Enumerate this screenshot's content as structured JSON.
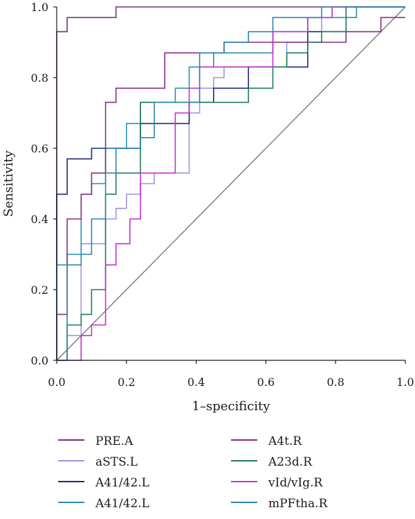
{
  "chart_data": {
    "type": "line",
    "title": "",
    "xlabel": "1–specificity",
    "ylabel": "Sensitivity",
    "xlim": [
      0,
      1
    ],
    "ylim": [
      0,
      1
    ],
    "xticks": [
      "0.0",
      "0.2",
      "0.4",
      "0.6",
      "0.8",
      "1.0"
    ],
    "yticks": [
      "0.0",
      "0.2",
      "0.4",
      "0.6",
      "0.8",
      "1.0"
    ],
    "grid": false,
    "legend_position": "bottom",
    "reference_line": {
      "x": [
        0,
        1
      ],
      "y": [
        0,
        1
      ],
      "color": "#777777"
    },
    "series": [
      {
        "name": "PRE.A",
        "color": "#7b2a86",
        "x": [
          0.0,
          0.0,
          0.03,
          0.03,
          0.1,
          0.1,
          0.17,
          0.17,
          1.0
        ],
        "y": [
          0.0,
          0.93,
          0.93,
          0.97,
          0.97,
          0.97,
          0.97,
          1.0,
          1.0
        ]
      },
      {
        "name": "aSTS.L",
        "color": "#9b96e0",
        "x": [
          0.0,
          0.03,
          0.03,
          0.07,
          0.07,
          0.14,
          0.14,
          0.17,
          0.17,
          0.2,
          0.2,
          0.24,
          0.24,
          0.28,
          0.28,
          0.38,
          0.38,
          0.41,
          0.41,
          0.45,
          0.45,
          0.48,
          0.48,
          0.52,
          0.52,
          0.55,
          0.55,
          0.66,
          0.66,
          0.72,
          0.72,
          0.76,
          0.76,
          0.79,
          0.79,
          1.0
        ],
        "y": [
          0.0,
          0.0,
          0.07,
          0.07,
          0.33,
          0.33,
          0.4,
          0.4,
          0.43,
          0.43,
          0.47,
          0.47,
          0.5,
          0.5,
          0.53,
          0.53,
          0.7,
          0.7,
          0.77,
          0.77,
          0.8,
          0.8,
          0.83,
          0.83,
          0.83,
          0.83,
          0.83,
          0.83,
          0.9,
          0.9,
          0.93,
          0.93,
          0.97,
          0.97,
          1.0,
          1.0
        ]
      },
      {
        "name": "A41/42.L",
        "color": "#1f2a78",
        "x": [
          0.0,
          0.0,
          0.03,
          0.03,
          0.1,
          0.1,
          0.17,
          0.17,
          0.24,
          0.24,
          0.34,
          0.34,
          0.38,
          0.38,
          0.45,
          0.45,
          0.55,
          0.55,
          0.72,
          0.72,
          0.83,
          0.83,
          1.0
        ],
        "y": [
          0.0,
          0.47,
          0.47,
          0.57,
          0.57,
          0.6,
          0.6,
          0.6,
          0.6,
          0.67,
          0.67,
          0.67,
          0.67,
          0.73,
          0.73,
          0.77,
          0.77,
          0.83,
          0.83,
          0.93,
          0.93,
          1.0,
          1.0
        ]
      },
      {
        "name": "A41/42.L",
        "color": "#2a8fae",
        "x": [
          0.0,
          0.0,
          0.03,
          0.03,
          0.07,
          0.07,
          0.1,
          0.1,
          0.14,
          0.14,
          0.2,
          0.2,
          0.24,
          0.24,
          0.34,
          0.34,
          0.38,
          0.38,
          0.45,
          0.45,
          0.55,
          0.55,
          0.62,
          0.62,
          0.72,
          0.72,
          0.86,
          0.86,
          1.0
        ],
        "y": [
          0.0,
          0.27,
          0.27,
          0.3,
          0.3,
          0.47,
          0.47,
          0.5,
          0.5,
          0.6,
          0.6,
          0.67,
          0.67,
          0.73,
          0.73,
          0.77,
          0.77,
          0.83,
          0.83,
          0.87,
          0.87,
          0.87,
          0.87,
          0.93,
          0.93,
          0.97,
          0.97,
          1.0,
          1.0
        ]
      },
      {
        "name": "A4t.R",
        "color": "#8a2c86",
        "x": [
          0.0,
          0.0,
          0.03,
          0.03,
          0.07,
          0.07,
          0.1,
          0.1,
          0.14,
          0.14,
          0.17,
          0.17,
          0.24,
          0.24,
          0.31,
          0.31,
          0.38,
          0.38,
          0.48,
          0.48,
          0.72,
          0.72,
          0.83,
          0.83,
          0.93,
          0.93,
          1.0
        ],
        "y": [
          0.0,
          0.13,
          0.13,
          0.4,
          0.4,
          0.47,
          0.47,
          0.53,
          0.53,
          0.73,
          0.73,
          0.77,
          0.77,
          0.77,
          0.77,
          0.87,
          0.87,
          0.87,
          0.87,
          0.9,
          0.9,
          0.9,
          0.9,
          0.93,
          0.93,
          0.97,
          0.97
        ]
      },
      {
        "name": "A23d.R",
        "color": "#1f7a5c",
        "x": [
          0.0,
          0.03,
          0.03,
          0.07,
          0.07,
          0.1,
          0.1,
          0.14,
          0.14,
          0.17,
          0.17,
          0.21,
          0.21,
          0.24,
          0.24,
          0.48,
          0.48,
          0.55,
          0.55,
          0.62,
          0.62,
          0.66,
          0.66,
          0.72,
          0.72,
          0.76,
          0.76,
          0.83,
          0.83,
          1.0
        ],
        "y": [
          0.0,
          0.0,
          0.1,
          0.1,
          0.13,
          0.13,
          0.2,
          0.2,
          0.47,
          0.47,
          0.53,
          0.53,
          0.53,
          0.53,
          0.73,
          0.73,
          0.73,
          0.73,
          0.77,
          0.77,
          0.83,
          0.83,
          0.87,
          0.87,
          0.9,
          0.9,
          0.93,
          0.93,
          1.0,
          1.0
        ]
      },
      {
        "name": "vId/vIg.R",
        "color": "#c62ed1",
        "x": [
          0.0,
          0.07,
          0.07,
          0.1,
          0.1,
          0.14,
          0.14,
          0.17,
          0.17,
          0.21,
          0.21,
          0.24,
          0.24,
          0.34,
          0.34,
          0.38,
          0.38,
          0.41,
          0.41,
          0.48,
          0.48,
          0.52,
          0.52,
          0.55,
          0.55,
          0.62,
          0.62,
          0.66,
          0.66,
          0.72,
          0.72,
          0.79,
          0.79,
          1.0
        ],
        "y": [
          0.0,
          0.0,
          0.07,
          0.07,
          0.1,
          0.1,
          0.27,
          0.27,
          0.33,
          0.33,
          0.4,
          0.4,
          0.53,
          0.53,
          0.7,
          0.7,
          0.77,
          0.77,
          0.83,
          0.83,
          0.83,
          0.83,
          0.83,
          0.83,
          0.83,
          0.83,
          0.93,
          0.93,
          0.93,
          0.93,
          0.97,
          0.97,
          1.0,
          1.0
        ]
      },
      {
        "name": "mPFtha.R",
        "color": "#2b86a8",
        "x": [
          0.0,
          0.03,
          0.03,
          0.07,
          0.07,
          0.1,
          0.1,
          0.14,
          0.14,
          0.17,
          0.17,
          0.24,
          0.24,
          0.28,
          0.28,
          0.41,
          0.41,
          0.48,
          0.48,
          0.55,
          0.55,
          0.62,
          0.62,
          0.76,
          0.76,
          0.86,
          0.86,
          1.0
        ],
        "y": [
          0.0,
          0.0,
          0.27,
          0.27,
          0.3,
          0.3,
          0.4,
          0.4,
          0.53,
          0.53,
          0.6,
          0.6,
          0.63,
          0.63,
          0.73,
          0.73,
          0.87,
          0.87,
          0.9,
          0.9,
          0.93,
          0.93,
          0.97,
          0.97,
          1.0,
          1.0,
          1.0,
          1.0
        ]
      }
    ]
  }
}
